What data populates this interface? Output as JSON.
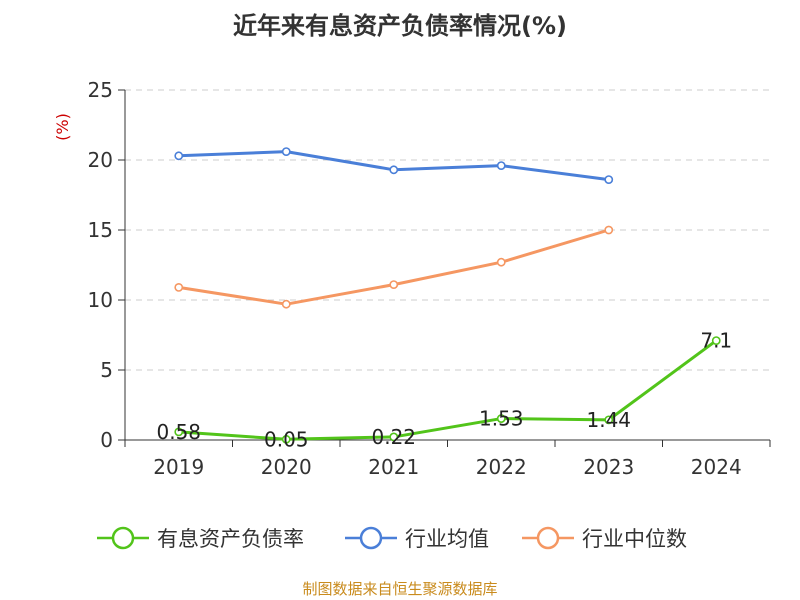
{
  "chart_data": {
    "type": "line",
    "title": "近年来有息资产负债率情况(%)",
    "ylabel": "(%)",
    "xlabel": "",
    "categories": [
      "2019",
      "2020",
      "2021",
      "2022",
      "2023",
      "2024"
    ],
    "ylim": [
      0,
      25
    ],
    "yticks": [
      0,
      5,
      10,
      15,
      20,
      25
    ],
    "grid": true,
    "legend_position": "bottom",
    "series": [
      {
        "name": "有息资产负债率",
        "color": "#52c41a",
        "values": [
          0.58,
          0.05,
          0.22,
          1.53,
          1.44,
          7.1
        ],
        "data_labels": [
          "0.58",
          "0.05",
          "0.22",
          "1.53",
          "1.44",
          "7.1"
        ]
      },
      {
        "name": "行业均值",
        "color": "#4a7fd8",
        "values": [
          20.3,
          20.6,
          19.3,
          19.6,
          18.6,
          null
        ]
      },
      {
        "name": "行业中位数",
        "color": "#f59762",
        "values": [
          10.9,
          9.7,
          11.1,
          12.7,
          15.0,
          null
        ]
      }
    ]
  },
  "source": "制图数据来自恒生聚源数据库",
  "colors": {
    "axis": "#333333",
    "grid": "#cccccc",
    "ylabel": "#cc0000",
    "source": "#c98b1d"
  }
}
